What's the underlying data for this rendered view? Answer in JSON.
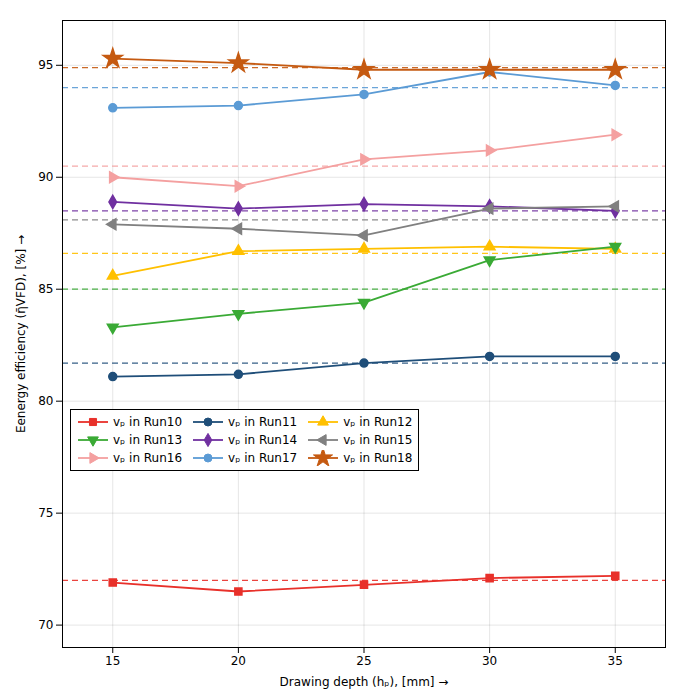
{
  "chart_data": {
    "type": "line",
    "x": [
      15,
      20,
      25,
      30,
      35
    ],
    "series": [
      {
        "name": "vₚ in Run10",
        "color": "#e8302a",
        "marker": "square",
        "values": [
          71.9,
          71.5,
          71.8,
          72.1,
          72.2
        ],
        "reference_y": 72.0
      },
      {
        "name": "vₚ in Run11",
        "color": "#1f4e79",
        "marker": "circle",
        "values": [
          81.1,
          81.2,
          81.7,
          82.0,
          82.0
        ],
        "reference_y": 81.7
      },
      {
        "name": "vₚ in Run12",
        "color": "#ffc000",
        "marker": "triangle-up",
        "values": [
          85.6,
          86.7,
          86.8,
          86.9,
          86.8
        ],
        "reference_y": 86.6
      },
      {
        "name": "vₚ in Run13",
        "color": "#3aaa35",
        "marker": "triangle-down",
        "values": [
          83.3,
          83.9,
          84.4,
          86.3,
          86.9
        ],
        "reference_y": 85.0
      },
      {
        "name": "vₚ in Run14",
        "color": "#7030a0",
        "marker": "diamond",
        "values": [
          88.9,
          88.6,
          88.8,
          88.7,
          88.5
        ],
        "reference_y": 88.5
      },
      {
        "name": "vₚ in Run15",
        "color": "#808080",
        "marker": "triangle-left",
        "values": [
          87.9,
          87.7,
          87.4,
          88.6,
          88.7
        ],
        "reference_y": 88.1
      },
      {
        "name": "vₚ in Run16",
        "color": "#f4a0a0",
        "marker": "triangle-right",
        "values": [
          90.0,
          89.6,
          90.8,
          91.2,
          91.9
        ],
        "reference_y": 90.5
      },
      {
        "name": "vₚ in Run17",
        "color": "#5b9bd5",
        "marker": "circle",
        "values": [
          93.1,
          93.2,
          93.7,
          94.7,
          94.1
        ],
        "reference_y": 94.0
      },
      {
        "name": "vₚ in Run18",
        "color": "#c55a11",
        "marker": "star",
        "values": [
          95.3,
          95.1,
          94.8,
          94.8,
          94.8
        ],
        "reference_y": 94.9
      }
    ],
    "xlabel": "Drawing depth (hₚ), [mm]",
    "ylabel": "Eenergy efficiency (η̄VFD), [%]",
    "xlim": [
      13,
      37
    ],
    "ylim": [
      69,
      97
    ],
    "xticks": [
      15,
      20,
      25,
      30,
      35
    ],
    "yticks": [
      70,
      75,
      80,
      85,
      90,
      95
    ],
    "grid": true,
    "legend": "lower left"
  }
}
